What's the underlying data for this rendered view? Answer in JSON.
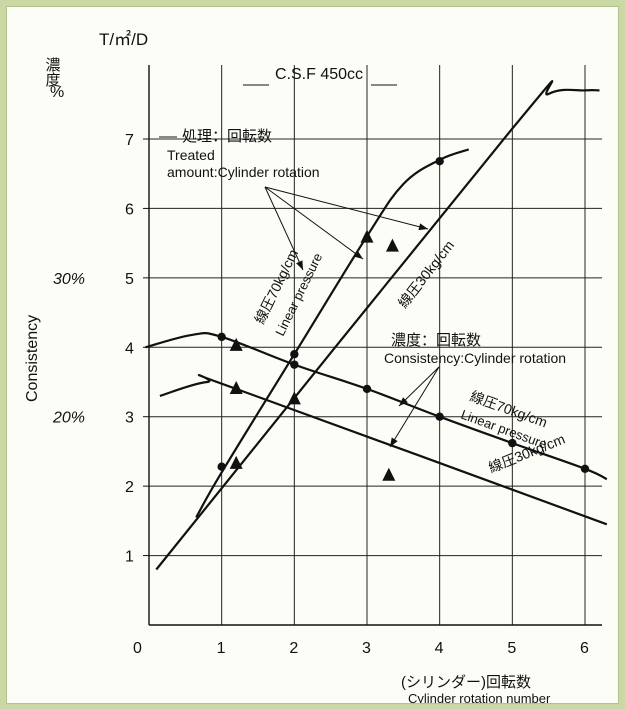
{
  "chart_data": {
    "type": "line",
    "title": "C.S.F 450cc",
    "x_axis": {
      "label_ja": "(シリンダー)回転数",
      "label_en": "Cylinder rotation number",
      "range": [
        0,
        6
      ],
      "ticks": [
        "0",
        "1",
        "2",
        "3",
        "4",
        "5",
        "6"
      ]
    },
    "y_axis_left": {
      "unit": "T/㎡/D",
      "range": [
        0,
        7.7
      ],
      "ticks": [
        "1",
        "2",
        "3",
        "4",
        "5",
        "6",
        "7"
      ]
    },
    "y_axis_consistency": {
      "unit_ja": "濃度",
      "unit_pct": "%",
      "label": "Consistency",
      "ticks": [
        {
          "label": "20%",
          "at": 3
        },
        {
          "label": "30%",
          "at": 5
        }
      ]
    },
    "annotations": {
      "treated_ja": "処理：回転数",
      "treated_en_1": "Treated",
      "treated_en_2": "amount:Cylinder rotation",
      "consistency_ja": "濃度：回転数",
      "consistency_en": "Consistency:Cylinder rotation",
      "lp70_ja": "線圧70kg/cm",
      "lp30_ja": "線圧30kg/cm",
      "linear_pressure_en": "Linear pressure",
      "lp70_treated_en": "Linear pressure"
    },
    "series": [
      {
        "key": "treated_70",
        "points": [
          [
            1.0,
            2.2
          ],
          [
            2.0,
            3.9
          ],
          [
            3.0,
            5.6
          ],
          [
            4.0,
            6.7
          ]
        ],
        "curve": [
          [
            0.65,
            1.55
          ],
          [
            1.0,
            2.2
          ],
          [
            2.0,
            3.9
          ],
          [
            3.0,
            5.6
          ],
          [
            3.5,
            6.35
          ],
          [
            4.0,
            6.7
          ],
          [
            4.4,
            6.85
          ]
        ],
        "markers": [
          [
            1.0,
            2.28,
            "circle"
          ],
          [
            1.2,
            2.32,
            "triangle"
          ],
          [
            2.0,
            3.9,
            "circle"
          ],
          [
            3.0,
            5.58,
            "triangle"
          ],
          [
            4.0,
            6.68,
            "circle"
          ]
        ]
      },
      {
        "key": "treated_30",
        "points": [
          [
            0.1,
            0.8
          ],
          [
            5.0,
            7.15
          ],
          [
            5.5,
            7.7
          ],
          [
            6.0,
            7.7
          ]
        ],
        "curve": [
          [
            0.1,
            0.8
          ],
          [
            5.0,
            7.15
          ],
          [
            5.5,
            7.65
          ],
          [
            6.0,
            7.7
          ],
          [
            6.2,
            7.7
          ]
        ],
        "markers": [
          [
            2.0,
            3.25,
            "triangle"
          ],
          [
            3.35,
            5.45,
            "triangle"
          ]
        ]
      },
      {
        "key": "consistency_70",
        "points": [
          [
            1.0,
            4.15
          ],
          [
            2.0,
            3.75
          ],
          [
            3.0,
            3.4
          ],
          [
            4.0,
            3.0
          ],
          [
            5.0,
            2.62
          ],
          [
            6.0,
            2.25
          ]
        ],
        "curve": [
          [
            -0.05,
            4.0
          ],
          [
            0.6,
            4.18
          ],
          [
            1.0,
            4.15
          ],
          [
            2.0,
            3.75
          ],
          [
            3.0,
            3.4
          ],
          [
            4.0,
            3.0
          ],
          [
            5.0,
            2.62
          ],
          [
            6.0,
            2.25
          ],
          [
            6.3,
            2.1
          ]
        ],
        "markers": [
          [
            1.0,
            4.15,
            "circle"
          ],
          [
            1.2,
            4.02,
            "triangle"
          ],
          [
            2.0,
            3.75,
            "circle"
          ],
          [
            3.0,
            3.4,
            "circle"
          ],
          [
            4.0,
            3.0,
            "circle"
          ],
          [
            5.0,
            2.62,
            "circle"
          ],
          [
            6.0,
            2.25,
            "circle"
          ]
        ]
      },
      {
        "key": "consistency_30",
        "points": [
          [
            0.2,
            3.35
          ],
          [
            0.8,
            3.5
          ],
          [
            1.2,
            3.4
          ],
          [
            6.3,
            1.45
          ]
        ],
        "curve": [
          [
            0.15,
            3.3
          ],
          [
            0.8,
            3.5
          ],
          [
            1.2,
            3.4
          ],
          [
            6.3,
            1.45
          ]
        ],
        "markers": [
          [
            1.2,
            3.4,
            "triangle"
          ],
          [
            3.3,
            2.15,
            "triangle"
          ]
        ]
      }
    ],
    "grid": true
  }
}
